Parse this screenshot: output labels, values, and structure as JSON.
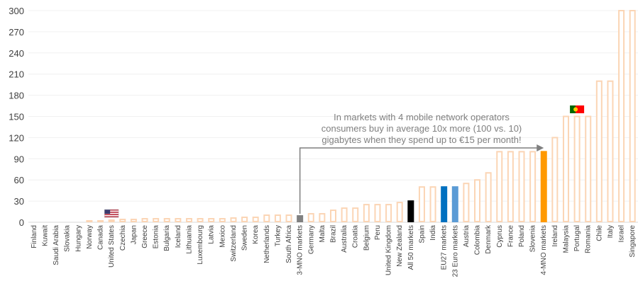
{
  "chart_data": {
    "type": "bar",
    "title": "",
    "xlabel": "",
    "ylabel": "",
    "ylim": [
      0,
      300
    ],
    "yticks": [
      0,
      30,
      60,
      90,
      120,
      150,
      180,
      210,
      240,
      270,
      300
    ],
    "grid": true,
    "legend": "none",
    "colors": {
      "default_fill": "#ffffff",
      "default_outline": "#fbd5b5",
      "gray": "#808080",
      "black": "#000000",
      "blue_dark": "#0070c0",
      "blue_light": "#5b9bd5",
      "orange": "#ff9900",
      "arrow": "#7f7f7f",
      "grid": "#f0f0f0"
    },
    "categories": [
      "Finland",
      "Kuwait",
      "Saudi Arabia",
      "Slovakia",
      "Hungary",
      "Norway",
      "Canada",
      "United States",
      "Czechia",
      "Japan",
      "Greece",
      "Estonia",
      "Bulgaria",
      "Iceland",
      "Lithuania",
      "Luxembourg",
      "Latvia",
      "Mexico",
      "Switzerland",
      "Sweden",
      "Korea",
      "Netherlands",
      "Turkey",
      "South Africa",
      "3-MNO markets",
      "Germany",
      "Malta",
      "Brazil",
      "Australia",
      "Croatia",
      "Belgium",
      "Peru",
      "United Kingdom",
      "New Zealand",
      "All 50 markets",
      "Spain",
      "India",
      "EU27 markets",
      "23 Euro markets",
      "Austria",
      "Colombia",
      "Denmark",
      "Cyprus",
      "France",
      "Poland",
      "Slovenia",
      "4-MNO markets",
      "Ireland",
      "Malaysia",
      "Portugal",
      "Romania",
      "Chile",
      "Italy",
      "Israel",
      "Singapore"
    ],
    "values": [
      0,
      0,
      0,
      0,
      1,
      2,
      2,
      3,
      4,
      4,
      5,
      5,
      5,
      5,
      5,
      5,
      5,
      5,
      6,
      7,
      7,
      10,
      10,
      10,
      10,
      12,
      12,
      17,
      20,
      20,
      25,
      25,
      25,
      28,
      31,
      50,
      50,
      51,
      51,
      55,
      60,
      70,
      100,
      100,
      100,
      100,
      101,
      120,
      150,
      150,
      150,
      200,
      200,
      300,
      300
    ],
    "highlights": {
      "3-MNO markets": "gray",
      "All 50 markets": "black",
      "EU27 markets": "blue_dark",
      "23 Euro markets": "blue_light",
      "4-MNO markets": "orange"
    },
    "flags": [
      {
        "category": "United States",
        "icon": "us-flag-icon"
      },
      {
        "category": "Portugal",
        "icon": "portugal-flag-icon"
      }
    ],
    "annotation": {
      "lines": [
        "In markets with 4 mobile network operators",
        "consumers buy in average  10x more (100 vs. 10)",
        "gigabytes when they spend up to €15 per month!"
      ],
      "from": "3-MNO markets",
      "to": "4-MNO markets"
    }
  }
}
